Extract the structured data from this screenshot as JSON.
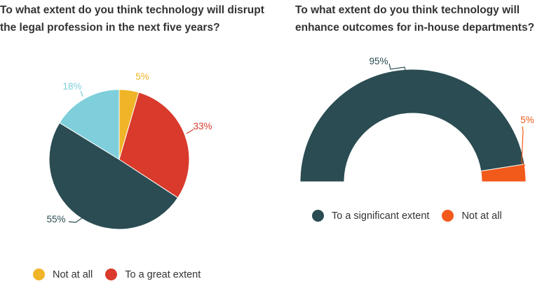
{
  "chart_data": [
    {
      "type": "pie",
      "title": "To what extent do you think technology will disrupt the legal profession in the next five years?",
      "series": [
        {
          "name": "Not at all",
          "value": 5,
          "label": "5%",
          "color": "#f0b429"
        },
        {
          "name": "To a great extent",
          "value": 33,
          "label": "33%",
          "color": "#d93a2b"
        },
        {
          "name": "",
          "value": 55,
          "label": "55%",
          "color": "#2a4c52"
        },
        {
          "name": "",
          "value": 18,
          "label": "18%",
          "color": "#7ecfdb"
        }
      ],
      "legend": {
        "placement": "bottom",
        "items": [
          "Not at all",
          "To a great extent"
        ]
      }
    },
    {
      "type": "pie",
      "subtype": "semi-donut",
      "title": "To what extent do you think technology will enhance outcomes for in-house departments?",
      "series": [
        {
          "name": "To a significant extent",
          "value": 95,
          "label": "95%",
          "color": "#2a4c52"
        },
        {
          "name": "Not at all",
          "value": 5,
          "label": "5%",
          "color": "#f25a1c"
        }
      ],
      "legend": {
        "placement": "bottom",
        "items": [
          "To a significant extent",
          "Not at all"
        ]
      }
    }
  ]
}
